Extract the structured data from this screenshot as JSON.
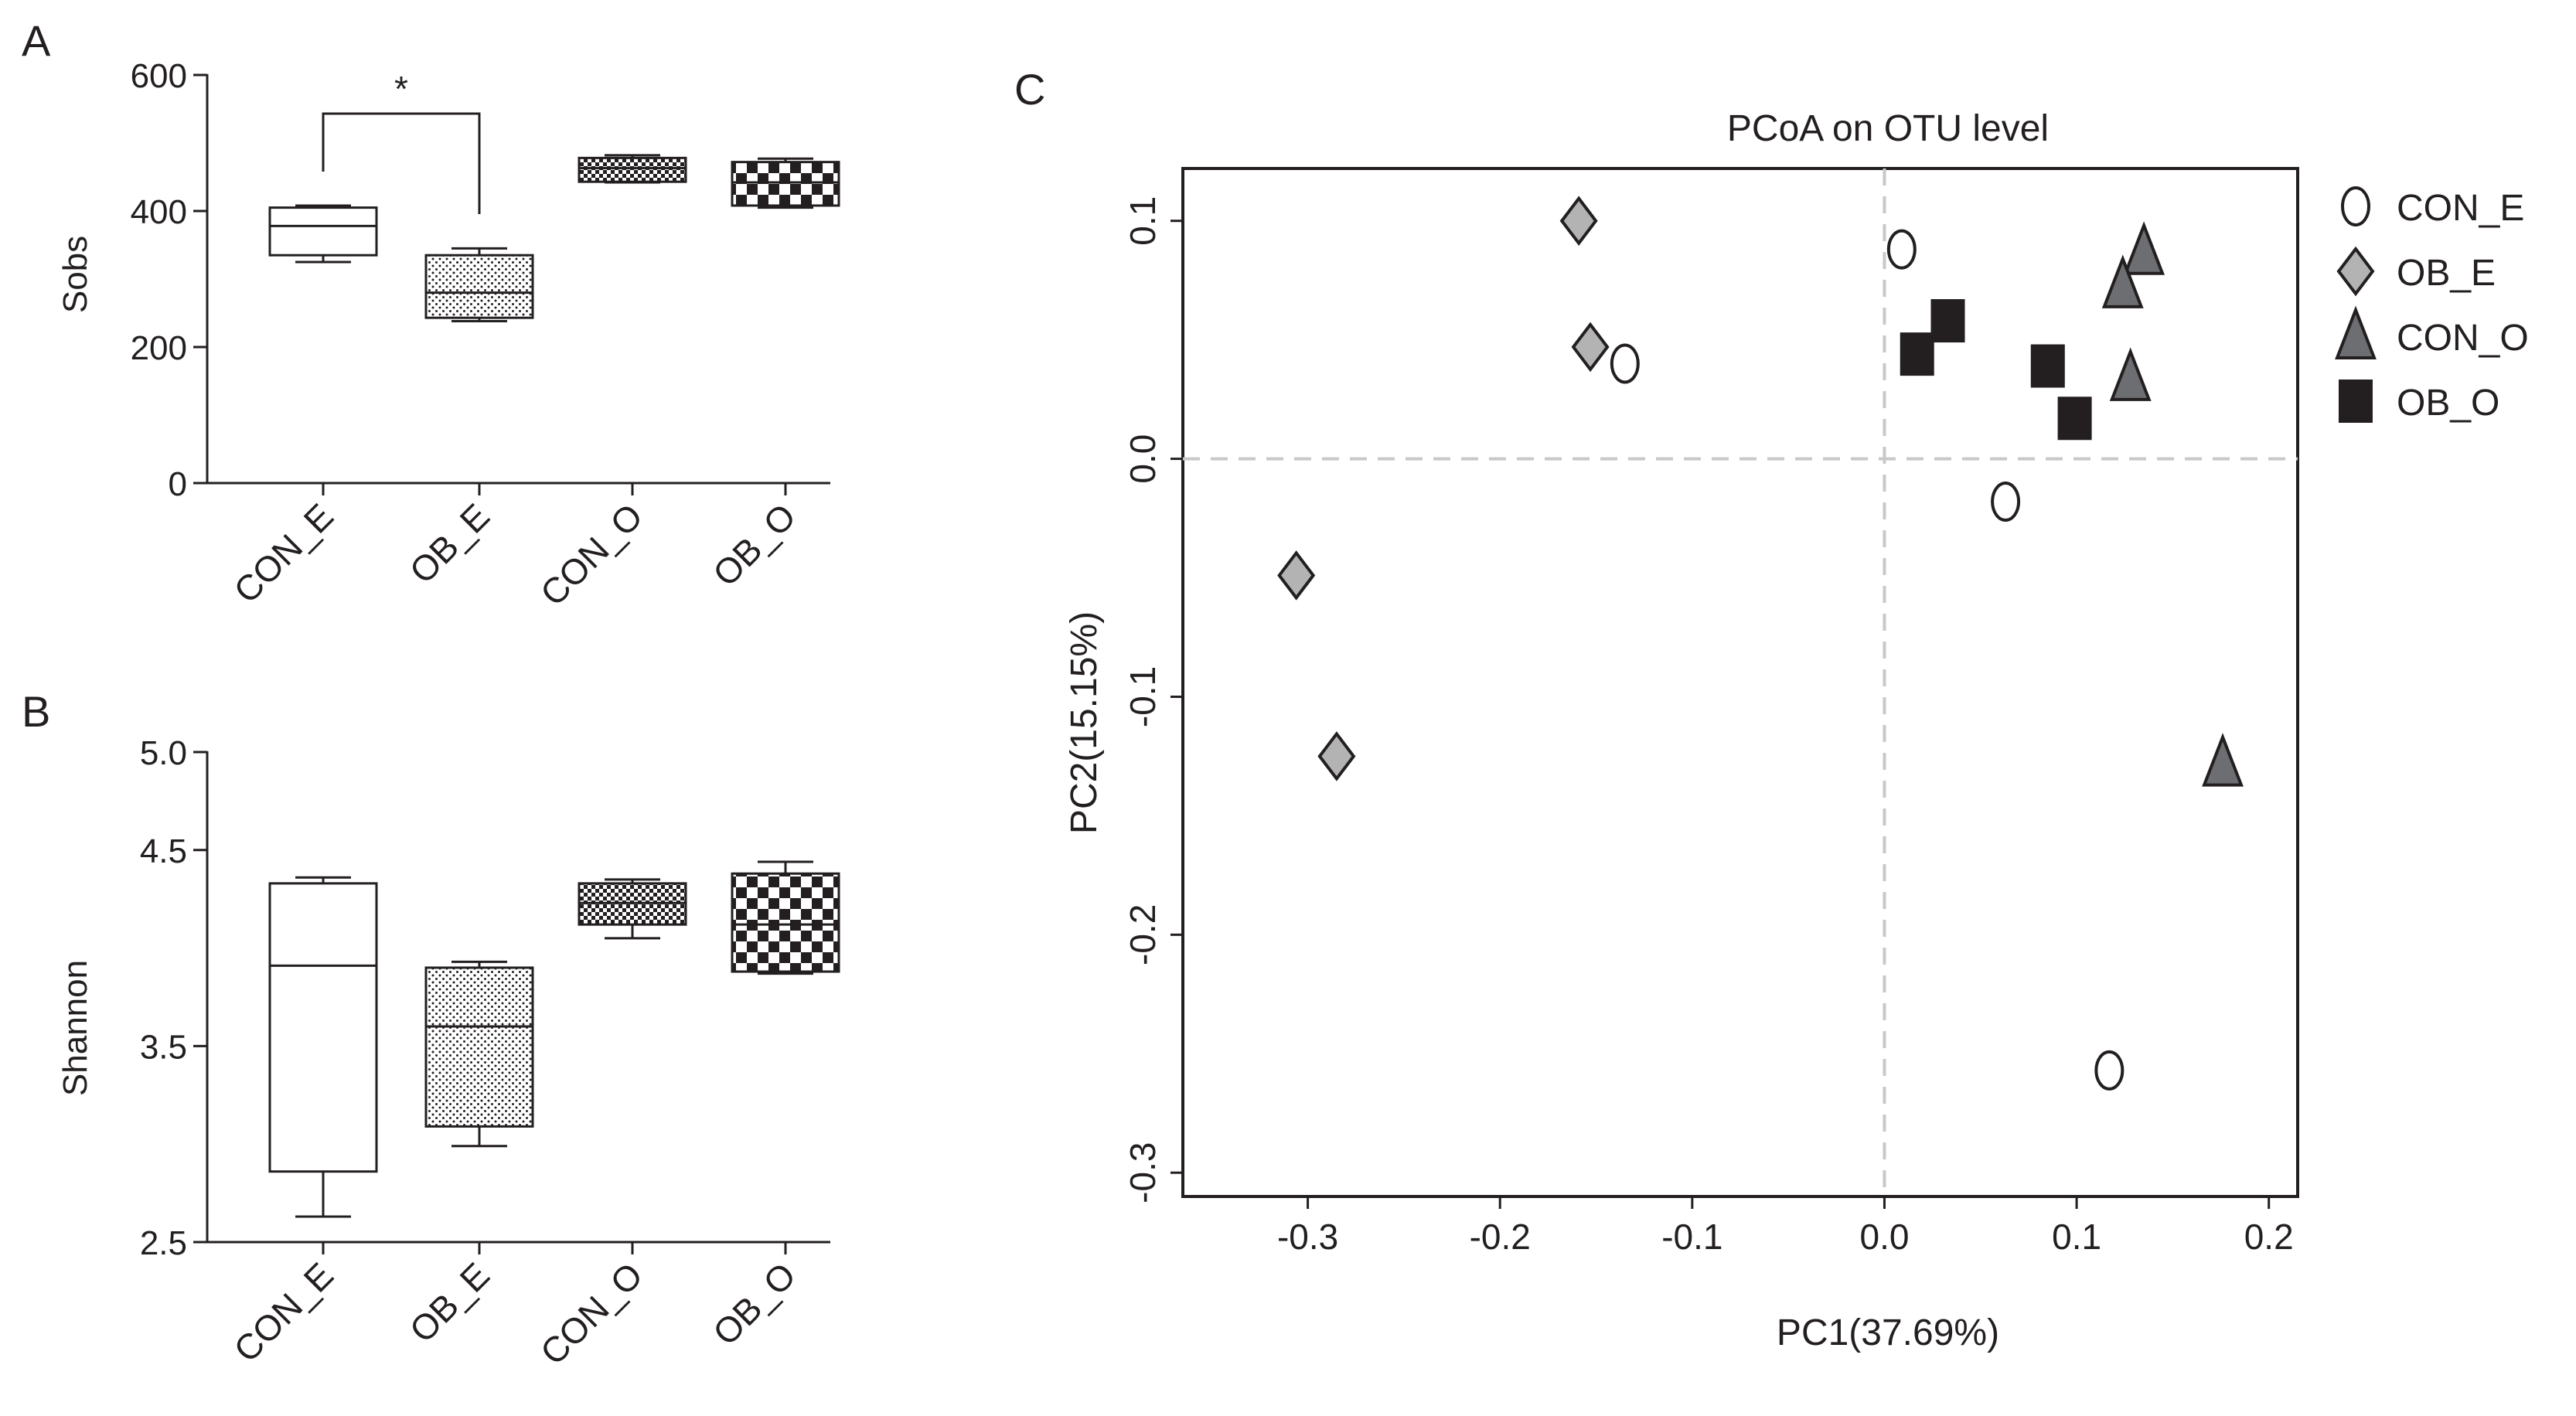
{
  "colors": {
    "ink": "#231f20",
    "diamond": "#b3b3b3",
    "triangle": "#6d6e71",
    "square": "#231f20",
    "dash": "#c8c8c8"
  },
  "chart_data": [
    {
      "panel": "A",
      "type": "box",
      "ylabel": "Sobs",
      "ylim": [
        0,
        600
      ],
      "yticks": [
        "0",
        "200",
        "400",
        "600"
      ],
      "categories": [
        "CON_E",
        "OB_E",
        "CON_O",
        "OB_O"
      ],
      "boxes": [
        {
          "group": "CON_E",
          "min": 325,
          "q1": 335,
          "median": 378,
          "q3": 405,
          "max": 408,
          "fill": "white"
        },
        {
          "group": "OB_E",
          "min": 238,
          "q1": 243,
          "median": 280,
          "q3": 335,
          "max": 345,
          "fill": "fine-dots"
        },
        {
          "group": "CON_O",
          "min": 442,
          "q1": 443,
          "median": 463,
          "q3": 478,
          "max": 482,
          "fill": "fine-checker"
        },
        {
          "group": "OB_O",
          "min": 405,
          "q1": 408,
          "median": 442,
          "q3": 472,
          "max": 477,
          "fill": "coarse-checker"
        }
      ],
      "significance": {
        "from": "CON_E",
        "to": "OB_E",
        "label": "*"
      }
    },
    {
      "panel": "B",
      "type": "box",
      "ylabel": "Shannon",
      "ylim": [
        2.5,
        5.0
      ],
      "yticks": [
        "2.5",
        "3.5",
        "4.5",
        "5.0"
      ],
      "categories": [
        "CON_E",
        "OB_E",
        "CON_O",
        "OB_O"
      ],
      "boxes": [
        {
          "group": "CON_E",
          "min": 2.63,
          "q1": 2.86,
          "median": 3.91,
          "q3": 4.33,
          "max": 4.36,
          "fill": "white"
        },
        {
          "group": "OB_E",
          "min": 2.99,
          "q1": 3.09,
          "median": 3.6,
          "q3": 3.9,
          "max": 3.93,
          "fill": "fine-dots"
        },
        {
          "group": "CON_O",
          "min": 4.05,
          "q1": 4.12,
          "median": 4.23,
          "q3": 4.33,
          "max": 4.35,
          "fill": "fine-checker"
        },
        {
          "group": "OB_O",
          "min": 3.87,
          "q1": 3.88,
          "median": 4.12,
          "q3": 4.38,
          "max": 4.44,
          "fill": "coarse-checker"
        }
      ]
    },
    {
      "panel": "C",
      "type": "scatter",
      "title": "PCoA on OTU level",
      "xlabel": "PC1(37.69%)",
      "ylabel": "PC2(15.15%)",
      "xlim": [
        -0.365,
        0.215
      ],
      "ylim": [
        -0.31,
        0.122
      ],
      "xticks": [
        "-0.3",
        "-0.2",
        "-0.1",
        "0.0",
        "0.1",
        "0.2"
      ],
      "yticks": [
        "0.1",
        "0.0",
        "-0.1",
        "-0.2",
        "-0.3"
      ],
      "series": [
        {
          "name": "CON_E",
          "marker": "ellipse",
          "points": [
            [
              0.009,
              0.088
            ],
            [
              -0.135,
              0.04
            ],
            [
              0.063,
              -0.018
            ],
            [
              0.117,
              -0.257
            ]
          ]
        },
        {
          "name": "OB_E",
          "marker": "diamond",
          "points": [
            [
              -0.159,
              0.1
            ],
            [
              -0.153,
              0.047
            ],
            [
              -0.306,
              -0.049
            ],
            [
              -0.285,
              -0.125
            ]
          ]
        },
        {
          "name": "CON_O",
          "marker": "triangle",
          "points": [
            [
              0.135,
              0.087
            ],
            [
              0.124,
              0.073
            ],
            [
              0.128,
              0.034
            ],
            [
              0.176,
              -0.128
            ]
          ]
        },
        {
          "name": "OB_O",
          "marker": "square",
          "points": [
            [
              0.033,
              0.058
            ],
            [
              0.017,
              0.044
            ],
            [
              0.085,
              0.039
            ],
            [
              0.099,
              0.017
            ]
          ]
        }
      ]
    }
  ]
}
